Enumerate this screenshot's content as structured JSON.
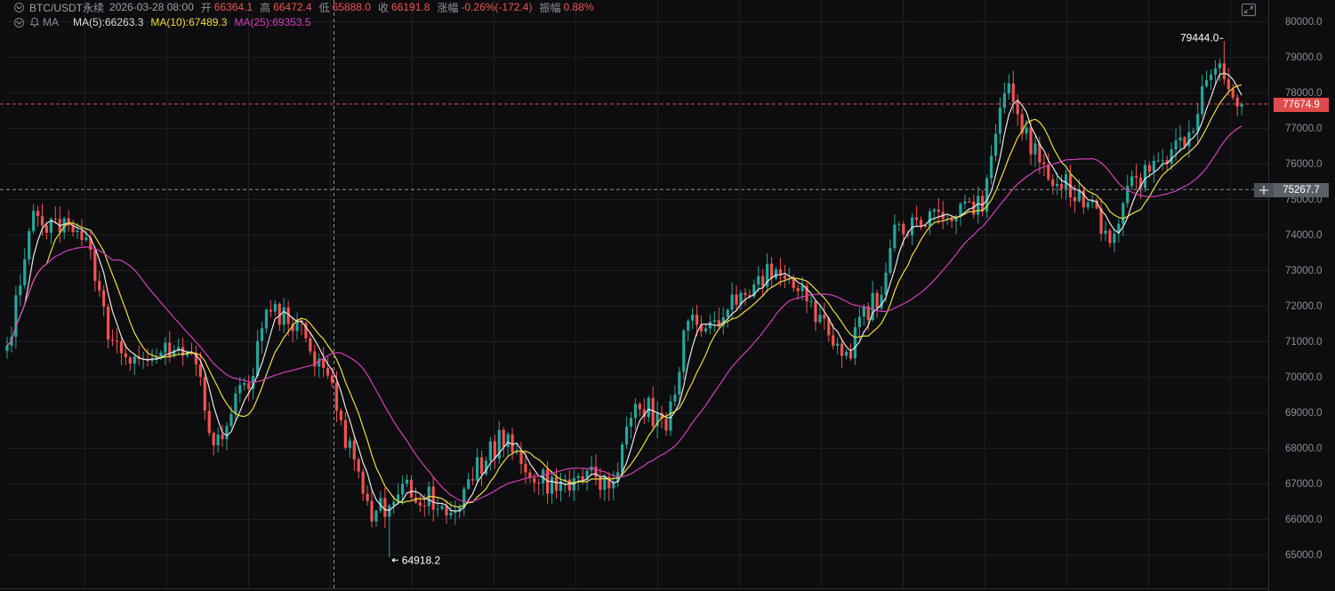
{
  "header": {
    "symbol": "BTC/USDT永续",
    "datetime": "2026-03-28 08:00",
    "open_label": "开",
    "open": "66364.1",
    "high_label": "高",
    "high": "66472.4",
    "low_label": "低",
    "low": "65888.0",
    "close_label": "收",
    "close": "66191.8",
    "change_label": "涨幅",
    "change": "-0.26%(-172.4)",
    "amplitude_label": "振幅",
    "amplitude": "0.88%"
  },
  "ma": {
    "label": "MA",
    "ma5": "MA(5):66263.3",
    "ma10": "MA(10):67489.3",
    "ma25": "MA(25):69353.5"
  },
  "axis": {
    "tick_labels": [
      "80000.0",
      "79000.0",
      "78000.0",
      "77000.0",
      "76000.0",
      "75000.0",
      "74000.0",
      "73000.0",
      "72000.0",
      "71000.0",
      "70000.0",
      "69000.0",
      "68000.0",
      "67000.0",
      "66000.0",
      "65000.0"
    ],
    "current_price": "77674.9",
    "crosshair_price": "75267.7"
  },
  "annotations": {
    "max_label": "79444.0",
    "min_label": "64918.2"
  },
  "colors": {
    "up": "#26a69a",
    "down": "#ef5350",
    "ma5": "#e6e6e6",
    "ma10": "#f0dc3c",
    "ma25": "#d43fb8",
    "current_price_tag": "#e04a4a",
    "crosshair_tag": "#5a6068"
  },
  "chart_data": {
    "type": "candlestick",
    "y_range": [
      64600,
      80450
    ],
    "tick_values": [
      80000,
      79000,
      78000,
      77000,
      76000,
      75000,
      74000,
      73000,
      72000,
      71000,
      70000,
      69000,
      68000,
      67000,
      66000,
      65000
    ],
    "current_price": 77674.9,
    "crosshair_price": 75267.7,
    "max": 79444.0,
    "min": 64918.2,
    "anchors": [
      71200,
      74400,
      74200,
      73800,
      71000,
      70200,
      70700,
      70400,
      68200,
      69700,
      71800,
      71500,
      70400,
      68000,
      66200,
      66800,
      66700,
      66000,
      67600,
      68300,
      67200,
      66800,
      67200,
      67000,
      69300,
      68700,
      71400,
      71400,
      72300,
      72900,
      72800,
      71400,
      70800,
      72100,
      74200,
      74300,
      74600,
      74800,
      78000,
      76600,
      75500,
      75000,
      74100,
      75600,
      76000,
      76900,
      78900,
      77675
    ],
    "ma": [
      {
        "name": "MA(5)",
        "color": "#e6e6e6",
        "period": 5
      },
      {
        "name": "MA(10)",
        "color": "#f0dc3c",
        "period": 10
      },
      {
        "name": "MA(25)",
        "color": "#d43fb8",
        "period": 25
      }
    ]
  }
}
